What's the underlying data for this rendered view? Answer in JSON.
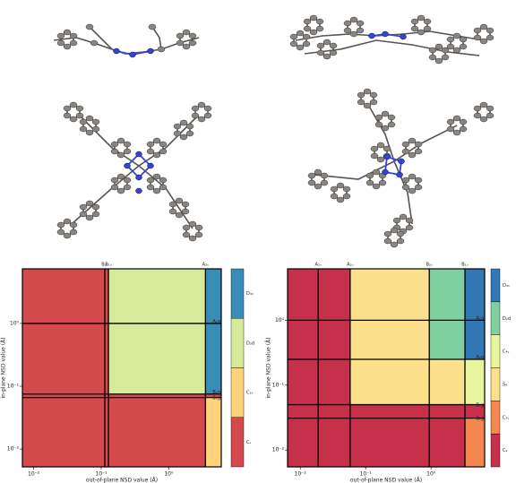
{
  "chart_data": [
    {
      "type": "region",
      "xlabel": "out-of-plane NSD value (Å)",
      "ylabel": "in-plane NSD value (Å)",
      "xscale": "log",
      "yscale": "log",
      "xlim": [
        0.0068,
        6
      ],
      "ylim": [
        0.0052,
        7.4
      ],
      "xticks": [
        {
          "value": 0.01,
          "label": "10⁻²"
        },
        {
          "value": 0.1,
          "label": "10⁻¹"
        },
        {
          "value": 1,
          "label": "10⁰"
        }
      ],
      "yticks": [
        {
          "value": 0.01,
          "label": "10⁻²"
        },
        {
          "value": 0.1,
          "label": "10⁻¹"
        },
        {
          "value": 1,
          "label": "10⁰"
        }
      ],
      "xbounds": [
        {
          "value": 0.113,
          "label": "B₂ᵤ"
        },
        {
          "value": 0.128,
          "label": "B₁ᵤ"
        },
        {
          "value": 3.5,
          "label": "A₂ᵤ"
        }
      ],
      "ybounds": [
        {
          "value": 1,
          "label": "A₁g"
        },
        {
          "value": 0.075,
          "label": "B₂g"
        },
        {
          "value": 0.066,
          "label": "B₁g"
        }
      ],
      "regions": [
        {
          "x": [
            0.0068,
            0.128
          ],
          "y": [
            0.0052,
            7.4
          ],
          "color": "#d4494b"
        },
        {
          "x": [
            0.128,
            3.5
          ],
          "y": [
            0.075,
            7.4
          ],
          "color": "#d6ea9b"
        },
        {
          "x": [
            3.5,
            6
          ],
          "y": [
            0.075,
            7.4
          ],
          "color": "#3a8cb8"
        },
        {
          "x": [
            0.128,
            6
          ],
          "y": [
            0.066,
            0.075
          ],
          "color": "#d4494b"
        },
        {
          "x": [
            0.128,
            3.5
          ],
          "y": [
            0.0052,
            0.066
          ],
          "color": "#d4494b"
        },
        {
          "x": [
            3.5,
            6
          ],
          "y": [
            0.0052,
            0.066
          ],
          "color": "#fdd27a"
        }
      ],
      "colorbar": [
        {
          "label": "D₄ₕ",
          "color": "#3a8cb8"
        },
        {
          "label": "D₂d",
          "color": "#d6ea9b"
        },
        {
          "label": "C₂ᵥ",
          "color": "#fdd27a"
        },
        {
          "label": "Cₛ",
          "color": "#d4494b"
        }
      ]
    },
    {
      "type": "region",
      "xlabel": "out-of-plane NSD value (Å)",
      "ylabel": "in-plane NSD value (Å)",
      "xscale": "log",
      "yscale": "log",
      "xlim": [
        0.0064,
        6.6
      ],
      "ylim": [
        0.0055,
        6.2
      ],
      "xticks": [
        {
          "value": 0.01,
          "label": "10⁻²"
        },
        {
          "value": 0.1,
          "label": "10⁻¹"
        },
        {
          "value": 1,
          "label": "10⁰"
        }
      ],
      "yticks": [
        {
          "value": 0.01,
          "label": "10⁻²"
        },
        {
          "value": 0.1,
          "label": "10⁻¹"
        },
        {
          "value": 1,
          "label": "10⁰"
        }
      ],
      "xbounds": [
        {
          "value": 0.0188,
          "label": "A₂ᵤ"
        },
        {
          "value": 0.058,
          "label": "A₂ᵤ"
        },
        {
          "value": 0.94,
          "label": "B₂ᵤ"
        },
        {
          "value": 3.3,
          "label": "B₁ᵤ"
        }
      ],
      "ybounds": [
        {
          "value": 1,
          "label": "A₁g"
        },
        {
          "value": 0.25,
          "label": "A₂g"
        },
        {
          "value": 0.05,
          "label": "B₁g"
        },
        {
          "value": 0.031,
          "label": "B₂g"
        }
      ],
      "regions": [
        {
          "x": [
            0.0064,
            0.058
          ],
          "y": [
            0.0055,
            6.2
          ],
          "color": "#c6304a"
        },
        {
          "x": [
            0.058,
            3.3
          ],
          "y": [
            0.0055,
            0.05
          ],
          "color": "#c6304a"
        },
        {
          "x": [
            0.058,
            0.94
          ],
          "y": [
            0.05,
            6.2
          ],
          "color": "#fde08b"
        },
        {
          "x": [
            0.94,
            3.3
          ],
          "y": [
            0.05,
            0.25
          ],
          "color": "#fde08b"
        },
        {
          "x": [
            0.94,
            3.3
          ],
          "y": [
            0.25,
            6.2
          ],
          "color": "#7fcf9f"
        },
        {
          "x": [
            3.3,
            6.6
          ],
          "y": [
            0.25,
            6.2
          ],
          "color": "#3178b5"
        },
        {
          "x": [
            3.3,
            6.6
          ],
          "y": [
            0.05,
            0.25
          ],
          "color": "#e9f59c"
        },
        {
          "x": [
            3.3,
            6.6
          ],
          "y": [
            0.031,
            0.05
          ],
          "color": "#c6304a"
        },
        {
          "x": [
            3.3,
            6.6
          ],
          "y": [
            0.0055,
            0.031
          ],
          "color": "#f4874f"
        }
      ],
      "colorbar": [
        {
          "label": "D₄ₕ",
          "color": "#3178b5"
        },
        {
          "label": "D₂d",
          "color": "#7fcf9f"
        },
        {
          "label": "C₄ᵥ",
          "color": "#e9f59c"
        },
        {
          "label": "S₄",
          "color": "#fde08b"
        },
        {
          "label": "C₂ᵥ",
          "color": "#f4874f"
        },
        {
          "label": "C₂",
          "color": "#c6304a"
        }
      ]
    }
  ]
}
